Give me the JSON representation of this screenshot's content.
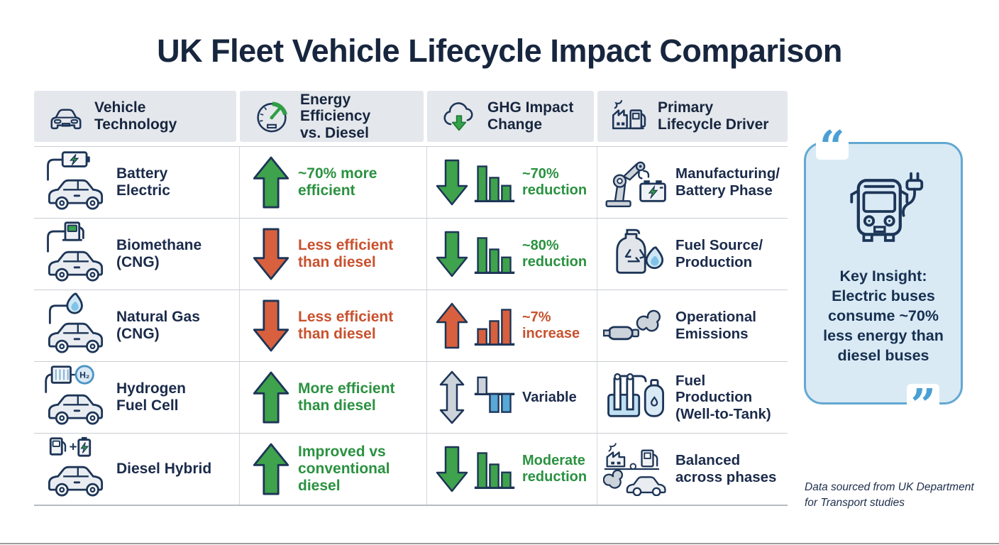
{
  "title": "UK Fleet Vehicle Lifecycle Impact Comparison",
  "colors": {
    "navy_text": "#1b2b4b",
    "green": "#2f9e44",
    "orange": "#c9512e",
    "gray": "#ccd3db",
    "blue_accent": "#4aa0d4",
    "insight_bg": "#d9eaf5",
    "insight_border": "#63a8d2",
    "header_bg": "#e4e7ec"
  },
  "table": {
    "headers": [
      {
        "label": "Vehicle\nTechnology",
        "icon": "car-front-icon"
      },
      {
        "label": "Energy Efficiency\nvs. Diesel",
        "icon": "speedometer-gauge-icon"
      },
      {
        "label": "GHG Impact\nChange",
        "icon": "cloud-arrow-down-icon"
      },
      {
        "label": "Primary\nLifecycle Driver",
        "icon": "factory-fuel-pump-icon"
      }
    ],
    "rows": [
      {
        "vehicle": {
          "icon": "battery-electric-car-icon",
          "label": "Battery\nElectric"
        },
        "efficiency": {
          "arrow": "up",
          "tone": "green",
          "text": "~70% more\nefficient"
        },
        "ghg": {
          "arrow": "down",
          "tone": "green",
          "bars": "decline",
          "text": "~70%\nreduction"
        },
        "driver": {
          "icon": "robot-arm-battery-icon",
          "label": "Manufacturing/\nBattery Phase"
        }
      },
      {
        "vehicle": {
          "icon": "cng-pump-car-icon",
          "label": "Biomethane\n(CNG)"
        },
        "efficiency": {
          "arrow": "down",
          "tone": "orange",
          "text": "Less efficient\nthan diesel"
        },
        "ghg": {
          "arrow": "down",
          "tone": "green",
          "bars": "decline",
          "text": "~80%\nreduction"
        },
        "driver": {
          "icon": "recycle-vessel-flame-icon",
          "label": "Fuel Source/\nProduction"
        }
      },
      {
        "vehicle": {
          "icon": "natural-gas-flame-car-icon",
          "label": "Natural Gas\n(CNG)"
        },
        "efficiency": {
          "arrow": "down",
          "tone": "orange",
          "text": "Less efficient\nthan diesel"
        },
        "ghg": {
          "arrow": "up",
          "tone": "orange",
          "bars": "rise",
          "text": "~7%\nincrease"
        },
        "driver": {
          "icon": "exhaust-smoke-icon",
          "label": "Operational\nEmissions"
        }
      },
      {
        "vehicle": {
          "icon": "hydrogen-fuel-cell-car-icon",
          "label": "Hydrogen\nFuel Cell"
        },
        "efficiency": {
          "arrow": "up",
          "tone": "green",
          "text": "More efficient\nthan diesel"
        },
        "ghg": {
          "arrow": "updown",
          "tone": "navy",
          "bars": "mixed",
          "text": "Variable"
        },
        "driver": {
          "icon": "electrolysis-cylinder-icon",
          "label": "Fuel Production\n(Well-to-Tank)"
        }
      },
      {
        "vehicle": {
          "icon": "diesel-hybrid-pump-battery-car-icon",
          "label": "Diesel Hybrid"
        },
        "efficiency": {
          "arrow": "up",
          "tone": "green",
          "text": "Improved vs\nconventional\ndiesel"
        },
        "ghg": {
          "arrow": "down",
          "tone": "green",
          "bars": "decline",
          "text": "Moderate\nreduction"
        },
        "driver": {
          "icon": "factory-pump-car-balance-icon",
          "label": "Balanced\nacross phases"
        }
      }
    ]
  },
  "insight": {
    "icon": "electric-bus-plug-icon",
    "quote_open": "“",
    "quote_close": "”",
    "text": "Key Insight:\nElectric buses\nconsume ~70%\nless energy than\ndiesel buses"
  },
  "footnote": "Data sourced from UK Department\nfor Transport studies"
}
